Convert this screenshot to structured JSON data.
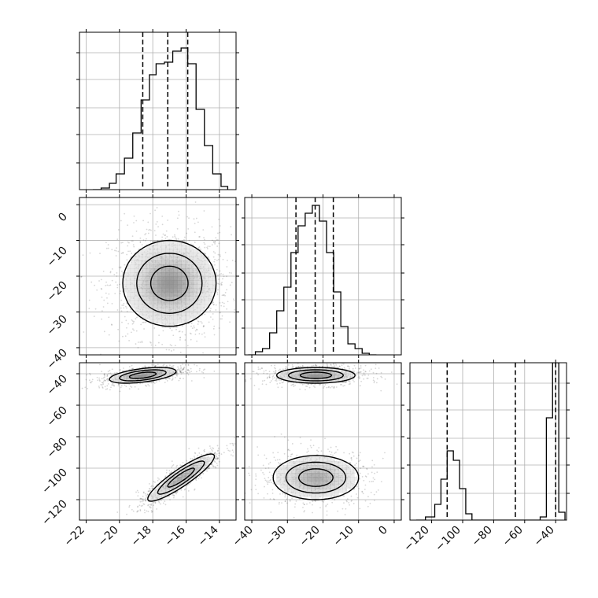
{
  "colors": {
    "axis": "#000000",
    "grid": "#b0b0b0",
    "density": "#000000",
    "scatter": "#222222",
    "background": "#ffffff"
  },
  "chart_data": [
    {
      "id": "hist-p0",
      "type": "bar",
      "histtype": "step",
      "grid": true,
      "xlim": [
        -22.4,
        -13.0
      ],
      "ylim": [
        0,
        1
      ],
      "edges": [
        -21.6,
        -21.1,
        -20.6,
        -20.2,
        -19.7,
        -19.2,
        -18.7,
        -18.2,
        -17.8,
        -17.3,
        -16.8,
        -16.3,
        -15.9,
        -15.4,
        -14.9,
        -14.4,
        -13.9,
        -13.5
      ],
      "values": [
        0.0,
        0.01,
        0.04,
        0.1,
        0.2,
        0.36,
        0.57,
        0.73,
        0.8,
        0.81,
        0.88,
        0.9,
        0.8,
        0.51,
        0.28,
        0.1,
        0.02
      ],
      "quantiles": [
        -18.6,
        -17.1,
        -15.9
      ]
    },
    {
      "id": "hist-p1",
      "type": "bar",
      "histtype": "step",
      "grid": true,
      "xlim": [
        -42,
        2
      ],
      "ylim": [
        0,
        1
      ],
      "edges": [
        -41,
        -39,
        -37,
        -35,
        -33,
        -31,
        -29,
        -27,
        -25,
        -23,
        -21,
        -19,
        -17,
        -15,
        -13,
        -11,
        -9,
        -7,
        -5
      ],
      "values": [
        0.0,
        0.02,
        0.04,
        0.14,
        0.28,
        0.43,
        0.65,
        0.82,
        0.9,
        0.95,
        0.85,
        0.65,
        0.4,
        0.18,
        0.07,
        0.04,
        0.01,
        0.0
      ],
      "quantiles": [
        -27.6,
        -22.2,
        -17.1
      ]
    },
    {
      "id": "hist-p2",
      "type": "bar",
      "histtype": "step",
      "grid": true,
      "xlim": [
        -134,
        -33
      ],
      "ylim": [
        0,
        1
      ],
      "edges": [
        -130,
        -124,
        -118,
        -114,
        -110,
        -106,
        -102,
        -98,
        -94,
        -90,
        -86,
        -82,
        -78,
        -74,
        -70,
        -66,
        -62,
        -58,
        -54,
        -50,
        -46,
        -42,
        -38,
        -34
      ],
      "values": [
        0.0,
        0.02,
        0.1,
        0.26,
        0.44,
        0.38,
        0.2,
        0.04,
        0.0,
        0.0,
        0.0,
        0.0,
        0.0,
        0.0,
        0.0,
        0.0,
        0.0,
        0.0,
        0.0,
        0.02,
        0.65,
        1.0,
        0.05
      ],
      "quantiles": [
        -110,
        -66,
        -40
      ]
    },
    {
      "id": "joint-p0-p1",
      "type": "scatter",
      "style": "density-contour",
      "grid": true,
      "xlim": [
        -22.4,
        -13.0
      ],
      "ylim": [
        -42,
        2
      ],
      "modes": [
        {
          "x": -17.0,
          "y": -22.0,
          "sx": 1.4,
          "sy": 6.0,
          "rho": 0.0,
          "w": 1.0,
          "n": 1400
        }
      ]
    },
    {
      "id": "joint-p0-p2",
      "type": "scatter",
      "style": "density-contour",
      "grid": true,
      "xlim": [
        -22.4,
        -13.0
      ],
      "ylim": [
        -133,
        -33
      ],
      "modes": [
        {
          "x": -18.6,
          "y": -41.0,
          "sx": 1.0,
          "sy": 2.5,
          "rho": 0.5,
          "w": 0.55,
          "n": 800
        },
        {
          "x": -16.3,
          "y": -106.0,
          "sx": 1.0,
          "sy": 7.5,
          "rho": 0.9,
          "w": 0.45,
          "n": 800
        }
      ]
    },
    {
      "id": "joint-p1-p2",
      "type": "scatter",
      "style": "density-contour",
      "grid": true,
      "xlim": [
        -42,
        2
      ],
      "ylim": [
        -133,
        -33
      ],
      "modes": [
        {
          "x": -22.0,
          "y": -41.0,
          "sx": 5.5,
          "sy": 2.5,
          "rho": 0.0,
          "w": 0.55,
          "n": 800
        },
        {
          "x": -22.0,
          "y": -106.0,
          "sx": 6.0,
          "sy": 7.0,
          "rho": 0.0,
          "w": 0.45,
          "n": 800
        }
      ]
    }
  ],
  "axes": {
    "col0_ticks": [
      -22,
      -20,
      -18,
      -16,
      -14
    ],
    "col0_ticks_text": [
      "−22",
      "−20",
      "−18",
      "−16",
      "−14"
    ],
    "col1_ticks": [
      -40,
      -30,
      -20,
      -10,
      0
    ],
    "col1_ticks_text": [
      "−40",
      "−30",
      "−20",
      "−10",
      "0"
    ],
    "col2_ticks": [
      -120,
      -100,
      -80,
      -60,
      -40
    ],
    "col2_ticks_text": [
      "−120",
      "−100",
      "−80",
      "−60",
      "−40"
    ]
  }
}
